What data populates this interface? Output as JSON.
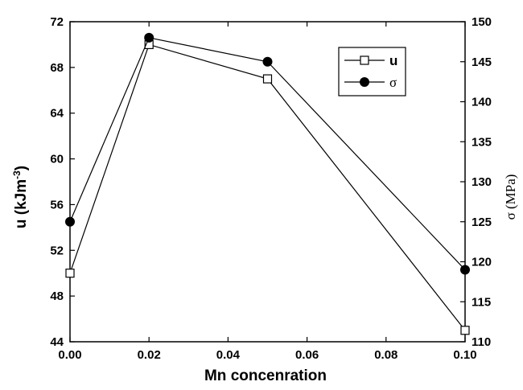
{
  "chart_data": {
    "type": "line",
    "xlabel": "Mn concenration",
    "ylabel_left": "u (kJm",
    "ylabel_left_sup": "-3",
    "ylabel_left_close": ")",
    "ylabel_right": "σ (MPa)",
    "x": [
      0.0,
      0.02,
      0.05,
      0.1
    ],
    "xlim": [
      0.0,
      0.1
    ],
    "xticks": [
      "0.00",
      "0.02",
      "0.04",
      "0.06",
      "0.08",
      "0.10"
    ],
    "ylim_left": [
      44,
      72
    ],
    "yticks_left": [
      "44",
      "48",
      "52",
      "56",
      "60",
      "64",
      "68",
      "72"
    ],
    "ylim_right": [
      110,
      150
    ],
    "yticks_right": [
      "110",
      "115",
      "120",
      "125",
      "130",
      "135",
      "140",
      "145",
      "150"
    ],
    "legend_position": "top-right",
    "series": [
      {
        "name": "u",
        "axis": "left",
        "marker": "open-square",
        "values": [
          50,
          70,
          67,
          45
        ]
      },
      {
        "name": "σ",
        "axis": "right",
        "marker": "filled-circle",
        "values": [
          125,
          148,
          145,
          119
        ]
      }
    ]
  }
}
